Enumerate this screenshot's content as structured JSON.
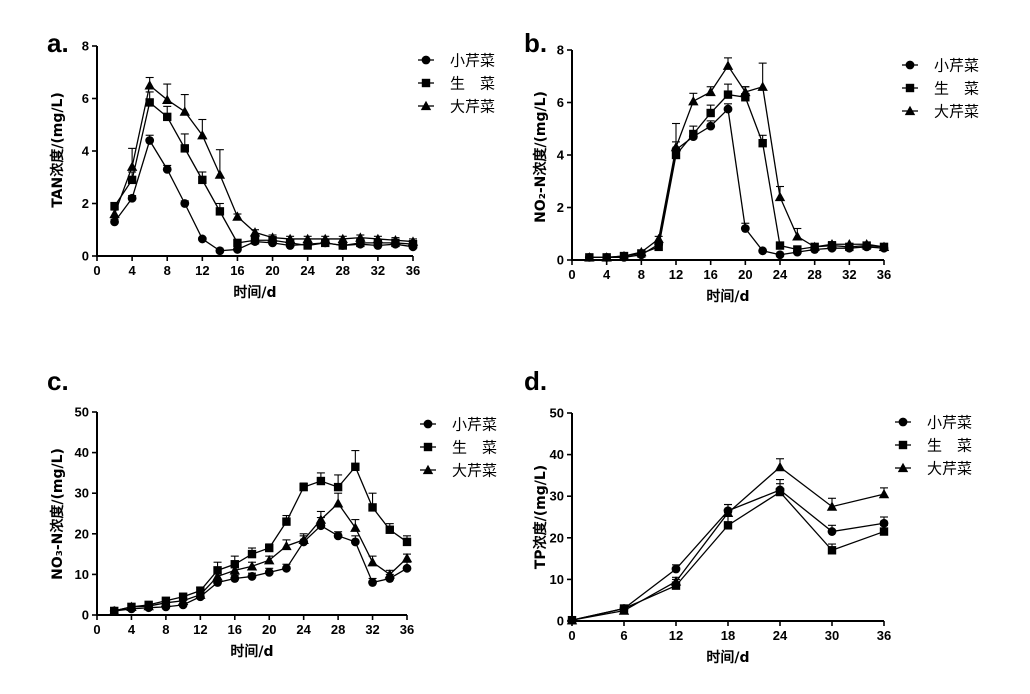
{
  "chart_data": [
    {
      "type": "line",
      "panel_label": "a.",
      "xlabel": "时间/d",
      "ylabel": "TAN浓度/(mg/L)",
      "xlim": [
        0,
        36
      ],
      "ylim": [
        0,
        8
      ],
      "xticks": [
        0,
        4,
        8,
        12,
        16,
        20,
        24,
        28,
        32,
        36
      ],
      "yticks": [
        0,
        2,
        4,
        6,
        8
      ],
      "legend_position": "right",
      "x": [
        2,
        4,
        6,
        8,
        10,
        12,
        14,
        16,
        18,
        20,
        22,
        24,
        26,
        28,
        30,
        32,
        34,
        36
      ],
      "series": [
        {
          "name": "小芹菜",
          "marker": "circle",
          "values": [
            1.3,
            2.2,
            4.4,
            3.3,
            2.0,
            0.65,
            0.2,
            0.25,
            0.55,
            0.5,
            0.4,
            0.45,
            0.5,
            0.4,
            0.45,
            0.4,
            0.45,
            0.35
          ],
          "errors": [
            0.1,
            0.1,
            0.2,
            0.15,
            0.1,
            0.05,
            0.05,
            0.05,
            0.05,
            0.05,
            0.05,
            0.05,
            0.05,
            0.05,
            0.05,
            0.05,
            0.05,
            0.05
          ]
        },
        {
          "name": "生　菜",
          "marker": "square",
          "values": [
            1.9,
            2.9,
            5.85,
            5.3,
            4.1,
            2.9,
            1.7,
            0.5,
            0.6,
            0.6,
            0.5,
            0.4,
            0.5,
            0.4,
            0.5,
            0.5,
            0.5,
            0.45
          ],
          "errors": [
            0.1,
            0.3,
            0.4,
            0.4,
            0.55,
            0.3,
            0.3,
            0.1,
            0.1,
            0.1,
            0.1,
            0.1,
            0.1,
            0.1,
            0.1,
            0.1,
            0.1,
            0.1
          ]
        },
        {
          "name": "大芹菜",
          "marker": "triangle",
          "values": [
            1.6,
            3.4,
            6.5,
            5.95,
            5.5,
            4.6,
            3.1,
            1.5,
            0.9,
            0.7,
            0.65,
            0.65,
            0.65,
            0.65,
            0.7,
            0.65,
            0.6,
            0.55
          ],
          "errors": [
            0.15,
            0.7,
            0.3,
            0.6,
            0.65,
            0.6,
            0.95,
            0.1,
            0.1,
            0.1,
            0.1,
            0.1,
            0.1,
            0.1,
            0.1,
            0.1,
            0.1,
            0.1
          ]
        }
      ]
    },
    {
      "type": "line",
      "panel_label": "b.",
      "xlabel": "时间/d",
      "ylabel": "NO₂-N浓度/(mg/L)",
      "xlim": [
        0,
        36
      ],
      "ylim": [
        0,
        8
      ],
      "xticks": [
        0,
        4,
        8,
        12,
        16,
        20,
        24,
        28,
        32,
        36
      ],
      "yticks": [
        0,
        2,
        4,
        6,
        8
      ],
      "legend_position": "right",
      "x": [
        2,
        4,
        6,
        8,
        10,
        12,
        14,
        16,
        18,
        20,
        22,
        24,
        26,
        28,
        30,
        32,
        34,
        36
      ],
      "series": [
        {
          "name": "小芹菜",
          "marker": "circle",
          "values": [
            0.1,
            0.1,
            0.1,
            0.2,
            0.6,
            4.2,
            4.7,
            5.1,
            5.75,
            1.2,
            0.35,
            0.2,
            0.3,
            0.4,
            0.45,
            0.45,
            0.5,
            0.45
          ],
          "errors": [
            0.02,
            0.02,
            0.02,
            0.05,
            0.1,
            0.3,
            0.2,
            0.2,
            0.2,
            0.2,
            0.05,
            0.05,
            0.05,
            0.05,
            0.05,
            0.05,
            0.05,
            0.05
          ]
        },
        {
          "name": "生　菜",
          "marker": "square",
          "values": [
            0.1,
            0.1,
            0.15,
            0.25,
            0.5,
            4.0,
            4.8,
            5.6,
            6.3,
            6.2,
            4.45,
            0.55,
            0.4,
            0.5,
            0.55,
            0.5,
            0.55,
            0.5
          ],
          "errors": [
            0.02,
            0.02,
            0.02,
            0.05,
            0.1,
            0.2,
            0.3,
            0.3,
            0.4,
            0.4,
            0.3,
            0.1,
            0.05,
            0.05,
            0.1,
            0.05,
            0.05,
            0.05
          ]
        },
        {
          "name": "大芹菜",
          "marker": "triangle",
          "values": [
            0.1,
            0.1,
            0.15,
            0.3,
            0.8,
            4.3,
            6.05,
            6.4,
            7.4,
            6.4,
            6.6,
            2.4,
            0.9,
            0.5,
            0.6,
            0.6,
            0.6,
            0.5
          ],
          "errors": [
            0.02,
            0.02,
            0.05,
            0.05,
            0.1,
            0.9,
            0.3,
            0.2,
            0.3,
            0.2,
            0.9,
            0.4,
            0.3,
            0.05,
            0.1,
            0.05,
            0.05,
            0.05
          ]
        }
      ]
    },
    {
      "type": "line",
      "panel_label": "c.",
      "xlabel": "时间/d",
      "ylabel": "NO₃-N浓度/(mg/L)",
      "xlim": [
        0,
        36
      ],
      "ylim": [
        0,
        50
      ],
      "xticks": [
        0,
        4,
        8,
        12,
        16,
        20,
        24,
        28,
        32,
        36
      ],
      "yticks": [
        0,
        10,
        20,
        30,
        40,
        50
      ],
      "legend_position": "right",
      "x": [
        2,
        4,
        6,
        8,
        10,
        12,
        14,
        16,
        18,
        20,
        22,
        24,
        26,
        28,
        30,
        32,
        34,
        36
      ],
      "series": [
        {
          "name": "小芹菜",
          "marker": "circle",
          "values": [
            1.0,
            1.5,
            1.8,
            2.0,
            2.5,
            4.5,
            8.0,
            9.0,
            9.5,
            10.5,
            11.5,
            18.0,
            22.0,
            19.5,
            18.0,
            8.0,
            9.0,
            11.5
          ],
          "errors": [
            0.2,
            0.2,
            0.2,
            0.2,
            0.3,
            0.5,
            0.8,
            0.8,
            0.8,
            1.0,
            1.0,
            1.5,
            2.0,
            1.0,
            1.5,
            1.0,
            1.0,
            1.5
          ]
        },
        {
          "name": "生　菜",
          "marker": "square",
          "values": [
            1.0,
            2.0,
            2.5,
            3.5,
            4.5,
            6.0,
            11.0,
            12.5,
            15.0,
            16.5,
            23.0,
            31.5,
            33.0,
            31.5,
            36.5,
            26.5,
            21.0,
            18.0
          ],
          "errors": [
            0.2,
            0.3,
            0.3,
            0.5,
            0.5,
            0.8,
            2.0,
            2.0,
            1.5,
            1.0,
            1.5,
            1.0,
            2.0,
            3.0,
            4.0,
            3.5,
            1.5,
            1.5
          ]
        },
        {
          "name": "大芹菜",
          "marker": "triangle",
          "values": [
            1.0,
            2.0,
            2.2,
            3.0,
            3.5,
            5.0,
            9.5,
            11.0,
            12.0,
            13.5,
            17.0,
            18.5,
            23.5,
            27.5,
            21.5,
            13.0,
            10.0,
            14.0
          ],
          "errors": [
            0.2,
            0.3,
            0.3,
            0.4,
            0.5,
            0.6,
            1.0,
            1.0,
            1.0,
            1.0,
            1.5,
            1.5,
            2.0,
            2.5,
            2.0,
            1.5,
            1.0,
            1.0
          ]
        }
      ]
    },
    {
      "type": "line",
      "panel_label": "d.",
      "xlabel": "时间/d",
      "ylabel": "TP浓度/(mg/L)",
      "xlim": [
        0,
        36
      ],
      "ylim": [
        0,
        50
      ],
      "xticks": [
        0,
        6,
        12,
        18,
        24,
        30,
        36
      ],
      "yticks": [
        0,
        10,
        20,
        30,
        40,
        50
      ],
      "legend_position": "right",
      "x": [
        0,
        6,
        12,
        18,
        24,
        30,
        36
      ],
      "series": [
        {
          "name": "小芹菜",
          "marker": "circle",
          "values": [
            0.2,
            3.0,
            12.5,
            26.5,
            31.5,
            21.5,
            23.5
          ],
          "errors": [
            0.2,
            0.3,
            1.0,
            1.5,
            2.5,
            1.5,
            1.5
          ]
        },
        {
          "name": "生　菜",
          "marker": "square",
          "values": [
            0.2,
            3.0,
            8.5,
            23.0,
            31.0,
            17.0,
            21.5
          ],
          "errors": [
            0.2,
            0.3,
            1.5,
            3.0,
            2.0,
            1.5,
            1.5
          ]
        },
        {
          "name": "大芹菜",
          "marker": "triangle",
          "values": [
            0.2,
            2.5,
            9.5,
            26.0,
            37.0,
            27.5,
            30.5
          ],
          "errors": [
            0.2,
            0.3,
            1.0,
            2.0,
            2.0,
            2.0,
            1.5
          ]
        }
      ]
    }
  ]
}
